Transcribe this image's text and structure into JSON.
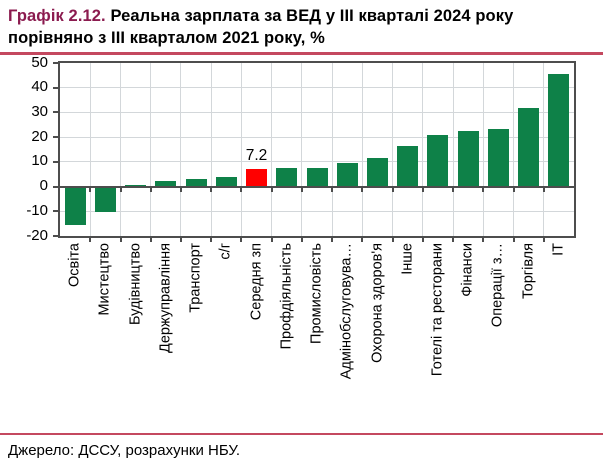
{
  "header": {
    "label": "Графік 2.12.",
    "title_line1": "Реальна зарплата за ВЕД у III кварталі 2024 року",
    "title_line2": "порівняно з III кварталом 2021 року, %"
  },
  "footer": {
    "source": "Джерело: ДССУ, розрахунки НБУ."
  },
  "colors": {
    "accent_rule": "#C4485F",
    "label_maroon": "#8B1B4F",
    "bar_green": "#0E8148",
    "bar_highlight_red": "#FF0000",
    "axis_dark": "#4D4D4D",
    "gridline": "#D3D7DA"
  },
  "chart_data": {
    "type": "bar",
    "title": "Реальна зарплата за ВЕД у III кварталі 2024 року порівняно з III кварталом 2021 року, %",
    "categories": [
      "Освіта",
      "Мистецтво",
      "Будівництво",
      "Держуправління",
      "Транспорт",
      "с/г",
      "Середня зп",
      "Профдіяльність",
      "Промисловість",
      "Адмінобслуговува…",
      "Охорона здоров'я",
      "Інше",
      "Готелі та ресторани",
      "Фінанси",
      "Операції з…",
      "Торгівля",
      "ІТ"
    ],
    "values": [
      -15.5,
      -10.5,
      0.8,
      2.3,
      3.0,
      3.7,
      7.2,
      7.4,
      7.6,
      9.4,
      11.4,
      16.5,
      21.0,
      22.5,
      23.4,
      32.0,
      45.5
    ],
    "highlight_index": 6,
    "highlight_label": "7.2",
    "xlabel": "",
    "ylabel": "",
    "ylim": [
      -20,
      50
    ],
    "yticks": [
      50,
      40,
      30,
      20,
      10,
      0,
      -10,
      -20
    ],
    "grid": true,
    "legend": false
  }
}
